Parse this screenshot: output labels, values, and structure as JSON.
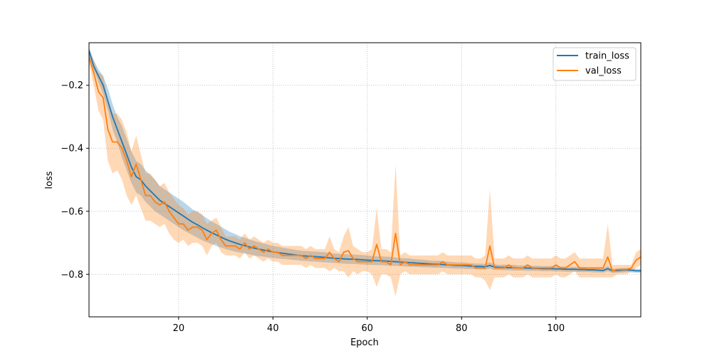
{
  "chart_data": {
    "type": "line",
    "xlabel": "Epoch",
    "ylabel": "loss",
    "xlim": [
      1,
      118
    ],
    "ylim": [
      -0.935,
      -0.065
    ],
    "xticks": [
      20,
      40,
      60,
      80,
      100
    ],
    "xtick_labels": [
      "20",
      "40",
      "60",
      "80",
      "100"
    ],
    "yticks": [
      -0.2,
      -0.4,
      -0.6,
      -0.8
    ],
    "ytick_labels": [
      "−0.2",
      "−0.4",
      "−0.6",
      "−0.8"
    ],
    "grid": true,
    "legend_position": "top-right",
    "x": [
      1,
      2,
      3,
      4,
      5,
      6,
      7,
      8,
      9,
      10,
      11,
      12,
      13,
      14,
      15,
      16,
      17,
      18,
      19,
      20,
      21,
      22,
      23,
      24,
      25,
      26,
      27,
      28,
      29,
      30,
      31,
      32,
      33,
      34,
      35,
      36,
      37,
      38,
      39,
      40,
      41,
      42,
      43,
      44,
      45,
      46,
      47,
      48,
      49,
      50,
      51,
      52,
      53,
      54,
      55,
      56,
      57,
      58,
      59,
      60,
      61,
      62,
      63,
      64,
      65,
      66,
      67,
      68,
      69,
      70,
      71,
      72,
      73,
      74,
      75,
      76,
      77,
      78,
      79,
      80,
      81,
      82,
      83,
      84,
      85,
      86,
      87,
      88,
      89,
      90,
      91,
      92,
      93,
      94,
      95,
      96,
      97,
      98,
      99,
      100,
      101,
      102,
      103,
      104,
      105,
      106,
      107,
      108,
      109,
      110,
      111,
      112,
      113,
      114,
      115,
      116,
      117,
      118
    ],
    "series": [
      {
        "name": "train_loss",
        "color": "#1f77b4",
        "band_color": "#1f77b4",
        "values": [
          -0.09,
          -0.14,
          -0.17,
          -0.2,
          -0.25,
          -0.3,
          -0.34,
          -0.38,
          -0.42,
          -0.46,
          -0.49,
          -0.5,
          -0.52,
          -0.535,
          -0.55,
          -0.565,
          -0.575,
          -0.585,
          -0.595,
          -0.605,
          -0.615,
          -0.625,
          -0.635,
          -0.643,
          -0.652,
          -0.66,
          -0.668,
          -0.675,
          -0.682,
          -0.689,
          -0.695,
          -0.7,
          -0.705,
          -0.709,
          -0.713,
          -0.717,
          -0.72,
          -0.723,
          -0.726,
          -0.729,
          -0.731,
          -0.733,
          -0.735,
          -0.737,
          -0.739,
          -0.741,
          -0.742,
          -0.743,
          -0.744,
          -0.745,
          -0.746,
          -0.748,
          -0.749,
          -0.75,
          -0.751,
          -0.752,
          -0.752,
          -0.753,
          -0.754,
          -0.755,
          -0.756,
          -0.757,
          -0.757,
          -0.758,
          -0.759,
          -0.76,
          -0.761,
          -0.762,
          -0.763,
          -0.764,
          -0.765,
          -0.766,
          -0.767,
          -0.768,
          -0.768,
          -0.769,
          -0.77,
          -0.771,
          -0.772,
          -0.772,
          -0.773,
          -0.774,
          -0.775,
          -0.775,
          -0.776,
          -0.772,
          -0.777,
          -0.778,
          -0.778,
          -0.779,
          -0.779,
          -0.78,
          -0.78,
          -0.78,
          -0.781,
          -0.781,
          -0.782,
          -0.782,
          -0.782,
          -0.783,
          -0.783,
          -0.784,
          -0.784,
          -0.784,
          -0.785,
          -0.785,
          -0.786,
          -0.786,
          -0.787,
          -0.788,
          -0.782,
          -0.789,
          -0.788,
          -0.787,
          -0.786,
          -0.787,
          -0.789,
          -0.789
        ],
        "lower": [
          -0.1,
          -0.15,
          -0.19,
          -0.23,
          -0.28,
          -0.34,
          -0.38,
          -0.43,
          -0.47,
          -0.51,
          -0.54,
          -0.55,
          -0.57,
          -0.585,
          -0.6,
          -0.61,
          -0.62,
          -0.63,
          -0.64,
          -0.65,
          -0.66,
          -0.668,
          -0.676,
          -0.684,
          -0.692,
          -0.698,
          -0.704,
          -0.71,
          -0.715,
          -0.72,
          -0.724,
          -0.728,
          -0.731,
          -0.734,
          -0.737,
          -0.74,
          -0.742,
          -0.744,
          -0.746,
          -0.748,
          -0.75,
          -0.751,
          -0.752,
          -0.754,
          -0.755,
          -0.757,
          -0.758,
          -0.759,
          -0.76,
          -0.761,
          -0.762,
          -0.763,
          -0.764,
          -0.765,
          -0.766,
          -0.767,
          -0.767,
          -0.768,
          -0.769,
          -0.77,
          -0.77,
          -0.771,
          -0.771,
          -0.772,
          -0.773,
          -0.773,
          -0.774,
          -0.775,
          -0.776,
          -0.776,
          -0.777,
          -0.778,
          -0.778,
          -0.779,
          -0.779,
          -0.78,
          -0.78,
          -0.781,
          -0.782,
          -0.782,
          -0.783,
          -0.783,
          -0.784,
          -0.784,
          -0.785,
          -0.782,
          -0.786,
          -0.786,
          -0.787,
          -0.787,
          -0.788,
          -0.788,
          -0.788,
          -0.789,
          -0.789,
          -0.789,
          -0.79,
          -0.79,
          -0.79,
          -0.791,
          -0.791,
          -0.792,
          -0.792,
          -0.792,
          -0.793,
          -0.793,
          -0.793,
          -0.794,
          -0.794,
          -0.795,
          -0.79,
          -0.796,
          -0.795,
          -0.794,
          -0.793,
          -0.794,
          -0.795,
          -0.795
        ],
        "upper": [
          -0.08,
          -0.12,
          -0.15,
          -0.17,
          -0.21,
          -0.26,
          -0.3,
          -0.33,
          -0.37,
          -0.41,
          -0.44,
          -0.45,
          -0.47,
          -0.485,
          -0.5,
          -0.52,
          -0.53,
          -0.54,
          -0.55,
          -0.56,
          -0.57,
          -0.582,
          -0.594,
          -0.602,
          -0.612,
          -0.622,
          -0.632,
          -0.64,
          -0.649,
          -0.658,
          -0.666,
          -0.672,
          -0.679,
          -0.684,
          -0.689,
          -0.694,
          -0.698,
          -0.702,
          -0.706,
          -0.71,
          -0.712,
          -0.715,
          -0.718,
          -0.72,
          -0.723,
          -0.725,
          -0.726,
          -0.727,
          -0.728,
          -0.729,
          -0.73,
          -0.733,
          -0.734,
          -0.735,
          -0.736,
          -0.737,
          -0.737,
          -0.738,
          -0.739,
          -0.74,
          -0.742,
          -0.743,
          -0.743,
          -0.744,
          -0.745,
          -0.747,
          -0.748,
          -0.749,
          -0.75,
          -0.752,
          -0.753,
          -0.754,
          -0.756,
          -0.757,
          -0.757,
          -0.758,
          -0.76,
          -0.761,
          -0.762,
          -0.762,
          -0.763,
          -0.765,
          -0.766,
          -0.766,
          -0.767,
          -0.762,
          -0.768,
          -0.77,
          -0.769,
          -0.771,
          -0.77,
          -0.772,
          -0.772,
          -0.771,
          -0.773,
          -0.773,
          -0.774,
          -0.774,
          -0.774,
          -0.775,
          -0.775,
          -0.776,
          -0.776,
          -0.776,
          -0.777,
          -0.777,
          -0.779,
          -0.778,
          -0.78,
          -0.781,
          -0.774,
          -0.782,
          -0.781,
          -0.78,
          -0.779,
          -0.78,
          -0.783,
          -0.783
        ]
      },
      {
        "name": "val_loss",
        "color": "#ff7f0e",
        "band_color": "#ff7f0e",
        "values": [
          -0.11,
          -0.16,
          -0.22,
          -0.24,
          -0.34,
          -0.38,
          -0.38,
          -0.4,
          -0.44,
          -0.49,
          -0.45,
          -0.5,
          -0.55,
          -0.55,
          -0.57,
          -0.58,
          -0.57,
          -0.6,
          -0.62,
          -0.64,
          -0.64,
          -0.66,
          -0.65,
          -0.65,
          -0.66,
          -0.69,
          -0.67,
          -0.66,
          -0.69,
          -0.71,
          -0.71,
          -0.71,
          -0.72,
          -0.7,
          -0.72,
          -0.71,
          -0.72,
          -0.73,
          -0.72,
          -0.73,
          -0.73,
          -0.74,
          -0.74,
          -0.74,
          -0.74,
          -0.74,
          -0.75,
          -0.74,
          -0.75,
          -0.75,
          -0.75,
          -0.73,
          -0.75,
          -0.76,
          -0.73,
          -0.725,
          -0.75,
          -0.76,
          -0.76,
          -0.76,
          -0.76,
          -0.705,
          -0.76,
          -0.76,
          -0.77,
          -0.67,
          -0.77,
          -0.76,
          -0.77,
          -0.77,
          -0.77,
          -0.77,
          -0.77,
          -0.77,
          -0.77,
          -0.76,
          -0.77,
          -0.77,
          -0.77,
          -0.77,
          -0.77,
          -0.77,
          -0.78,
          -0.78,
          -0.78,
          -0.71,
          -0.78,
          -0.78,
          -0.78,
          -0.77,
          -0.78,
          -0.78,
          -0.78,
          -0.77,
          -0.78,
          -0.78,
          -0.78,
          -0.78,
          -0.78,
          -0.77,
          -0.78,
          -0.78,
          -0.77,
          -0.76,
          -0.78,
          -0.78,
          -0.78,
          -0.78,
          -0.78,
          -0.78,
          -0.745,
          -0.79,
          -0.785,
          -0.785,
          -0.785,
          -0.78,
          -0.755,
          -0.745
        ],
        "lower": [
          -0.13,
          -0.2,
          -0.28,
          -0.31,
          -0.44,
          -0.48,
          -0.47,
          -0.5,
          -0.55,
          -0.58,
          -0.55,
          -0.59,
          -0.63,
          -0.63,
          -0.64,
          -0.65,
          -0.64,
          -0.67,
          -0.69,
          -0.7,
          -0.69,
          -0.71,
          -0.7,
          -0.7,
          -0.71,
          -0.74,
          -0.71,
          -0.7,
          -0.73,
          -0.74,
          -0.74,
          -0.74,
          -0.75,
          -0.73,
          -0.75,
          -0.74,
          -0.75,
          -0.76,
          -0.75,
          -0.76,
          -0.76,
          -0.77,
          -0.77,
          -0.77,
          -0.77,
          -0.77,
          -0.78,
          -0.77,
          -0.78,
          -0.78,
          -0.78,
          -0.79,
          -0.78,
          -0.79,
          -0.79,
          -0.81,
          -0.79,
          -0.8,
          -0.79,
          -0.79,
          -0.8,
          -0.84,
          -0.8,
          -0.8,
          -0.81,
          -0.87,
          -0.8,
          -0.79,
          -0.8,
          -0.8,
          -0.8,
          -0.8,
          -0.8,
          -0.8,
          -0.8,
          -0.79,
          -0.8,
          -0.8,
          -0.8,
          -0.8,
          -0.8,
          -0.8,
          -0.81,
          -0.81,
          -0.82,
          -0.85,
          -0.81,
          -0.81,
          -0.81,
          -0.8,
          -0.81,
          -0.81,
          -0.81,
          -0.8,
          -0.81,
          -0.81,
          -0.81,
          -0.81,
          -0.81,
          -0.8,
          -0.81,
          -0.81,
          -0.8,
          -0.79,
          -0.81,
          -0.81,
          -0.81,
          -0.81,
          -0.81,
          -0.81,
          -0.81,
          -0.81,
          -0.8,
          -0.8,
          -0.8,
          -0.79,
          -0.78,
          -0.77
        ],
        "upper": [
          -0.09,
          -0.12,
          -0.16,
          -0.17,
          -0.25,
          -0.29,
          -0.29,
          -0.31,
          -0.35,
          -0.41,
          -0.36,
          -0.42,
          -0.48,
          -0.48,
          -0.5,
          -0.52,
          -0.51,
          -0.54,
          -0.56,
          -0.58,
          -0.59,
          -0.61,
          -0.6,
          -0.6,
          -0.61,
          -0.64,
          -0.63,
          -0.62,
          -0.65,
          -0.68,
          -0.68,
          -0.68,
          -0.69,
          -0.67,
          -0.69,
          -0.68,
          -0.69,
          -0.7,
          -0.69,
          -0.7,
          -0.7,
          -0.71,
          -0.71,
          -0.71,
          -0.71,
          -0.71,
          -0.72,
          -0.71,
          -0.72,
          -0.72,
          -0.72,
          -0.68,
          -0.72,
          -0.73,
          -0.68,
          -0.65,
          -0.71,
          -0.72,
          -0.73,
          -0.73,
          -0.72,
          -0.59,
          -0.72,
          -0.72,
          -0.73,
          -0.45,
          -0.74,
          -0.73,
          -0.74,
          -0.74,
          -0.74,
          -0.74,
          -0.74,
          -0.74,
          -0.74,
          -0.73,
          -0.74,
          -0.74,
          -0.74,
          -0.74,
          -0.74,
          -0.74,
          -0.75,
          -0.75,
          -0.74,
          -0.53,
          -0.75,
          -0.75,
          -0.75,
          -0.74,
          -0.75,
          -0.75,
          -0.75,
          -0.74,
          -0.75,
          -0.75,
          -0.75,
          -0.75,
          -0.75,
          -0.74,
          -0.75,
          -0.75,
          -0.74,
          -0.73,
          -0.75,
          -0.75,
          -0.75,
          -0.75,
          -0.75,
          -0.75,
          -0.64,
          -0.77,
          -0.77,
          -0.77,
          -0.77,
          -0.77,
          -0.73,
          -0.72
        ]
      }
    ]
  }
}
